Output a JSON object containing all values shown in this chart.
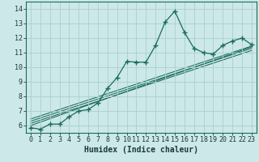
{
  "title": "",
  "xlabel": "Humidex (Indice chaleur)",
  "xlim": [
    -0.5,
    23.5
  ],
  "ylim": [
    5.5,
    14.5
  ],
  "xticks": [
    0,
    1,
    2,
    3,
    4,
    5,
    6,
    7,
    8,
    9,
    10,
    11,
    12,
    13,
    14,
    15,
    16,
    17,
    18,
    19,
    20,
    21,
    22,
    23
  ],
  "yticks": [
    6,
    7,
    8,
    9,
    10,
    11,
    12,
    13,
    14
  ],
  "bg_color": "#cce8e8",
  "grid_color": "#aacfcf",
  "line_color": "#1a6b5a",
  "main_data_x": [
    0,
    1,
    2,
    3,
    4,
    5,
    6,
    7,
    8,
    9,
    10,
    11,
    12,
    13,
    14,
    15,
    16,
    17,
    18,
    19,
    20,
    21,
    22,
    23
  ],
  "main_data_y": [
    5.85,
    5.75,
    6.1,
    6.1,
    6.6,
    7.0,
    7.1,
    7.55,
    8.55,
    9.3,
    10.4,
    10.35,
    10.35,
    11.5,
    13.1,
    13.85,
    12.4,
    11.3,
    11.0,
    10.9,
    11.5,
    11.8,
    12.0,
    11.55
  ],
  "ref_lines": [
    [
      [
        0,
        23
      ],
      [
        6.0,
        11.4
      ]
    ],
    [
      [
        0,
        23
      ],
      [
        6.15,
        11.15
      ]
    ],
    [
      [
        0,
        23
      ],
      [
        6.3,
        11.3
      ]
    ],
    [
      [
        0,
        23
      ],
      [
        6.45,
        11.45
      ]
    ]
  ],
  "tick_fontsize": 6,
  "xlabel_fontsize": 7
}
